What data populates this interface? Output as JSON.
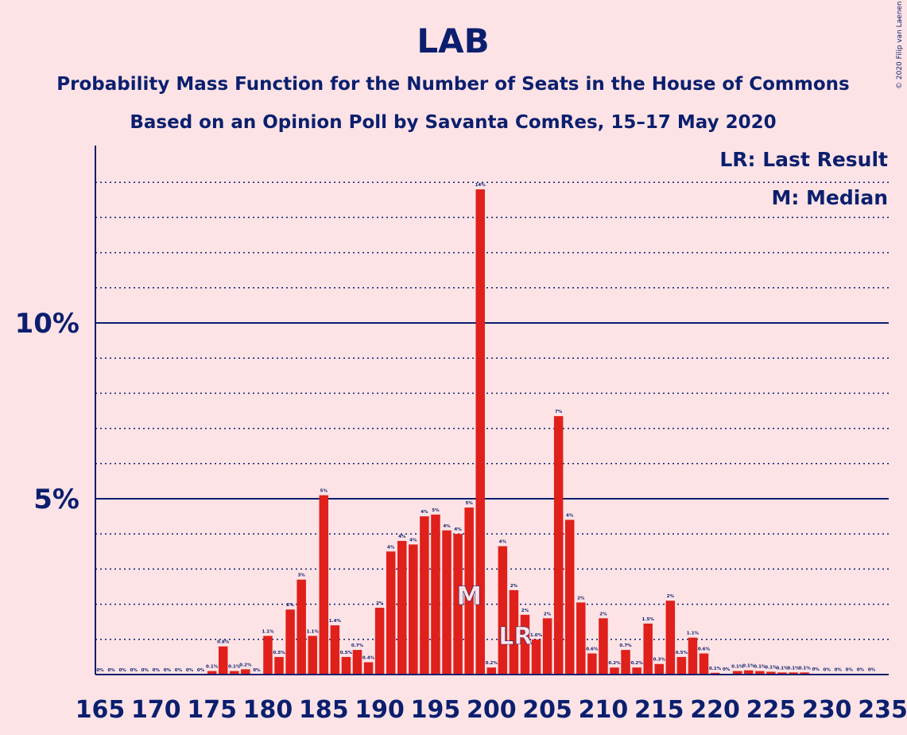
{
  "chart_data": {
    "type": "bar",
    "title": "LAB",
    "subtitle": "Probability Mass Function for the Number of Seats in the House of Commons",
    "subtitle2": "Based on an Opinion Poll by Savanta ComRes, 15–17 May 2020",
    "copyright": "© 2020 Filip van Laenen",
    "legend": [
      "LR: Last Result",
      "M: Median"
    ],
    "legend_position": "top-right",
    "xlim": [
      165,
      235
    ],
    "ylim": [
      0,
      15
    ],
    "y_unit": "%",
    "y_ticks": [
      "5%",
      "10%"
    ],
    "y_tick_values": [
      5,
      10
    ],
    "x_ticks": [
      "165",
      "170",
      "175",
      "180",
      "185",
      "190",
      "195",
      "200",
      "205",
      "210",
      "215",
      "220",
      "225",
      "230",
      "235"
    ],
    "x_tick_values": [
      165,
      170,
      175,
      180,
      185,
      190,
      195,
      200,
      205,
      210,
      215,
      220,
      225,
      230,
      235
    ],
    "grid": "dotted every 1%, solid at 5% and 10%",
    "median_seat": 198,
    "median_marker": "M",
    "last_result_seat": 202,
    "last_result_marker": "LR",
    "bar_color": "#e0201b",
    "axis_color": "#0b1f6e",
    "seats": [
      165,
      166,
      167,
      168,
      169,
      170,
      171,
      172,
      173,
      174,
      175,
      176,
      177,
      178,
      179,
      180,
      181,
      182,
      183,
      184,
      185,
      186,
      187,
      188,
      189,
      190,
      191,
      192,
      193,
      194,
      195,
      196,
      197,
      198,
      199,
      200,
      201,
      202,
      203,
      204,
      205,
      206,
      207,
      208,
      209,
      210,
      211,
      212,
      213,
      214,
      215,
      216,
      217,
      218,
      219,
      220,
      221,
      222,
      223,
      224,
      225,
      226,
      227,
      228,
      229,
      230,
      231,
      232,
      233,
      234
    ],
    "values": [
      0,
      0,
      0,
      0,
      0,
      0,
      0,
      0,
      0,
      0,
      0.1,
      0.8,
      0.1,
      0.15,
      0,
      1.1,
      0.5,
      1.85,
      2.7,
      1.1,
      5.1,
      1.4,
      0.5,
      0.7,
      0.35,
      1.9,
      3.5,
      3.8,
      3.7,
      4.5,
      4.55,
      4.1,
      4.0,
      4.75,
      13.8,
      0.2,
      3.65,
      2.4,
      1.7,
      1.0,
      1.6,
      7.35,
      4.4,
      2.05,
      0.6,
      1.6,
      0.2,
      0.7,
      0.2,
      1.45,
      0.3,
      2.1,
      0.5,
      1.05,
      0.6,
      0.05,
      0.02,
      0.1,
      0.12,
      0.1,
      0.08,
      0.06,
      0.06,
      0.06,
      0.02,
      0.01,
      0.01,
      0.01,
      0.01,
      0.01
    ],
    "labels": [
      "0%",
      "0%",
      "0%",
      "0%",
      "0%",
      "0%",
      "0%",
      "0%",
      "0%",
      "0%",
      "0.1%",
      "0.8%",
      "0.1%",
      "0.2%",
      "0%",
      "1.1%",
      "0.5%",
      "2%",
      "3%",
      "1.1%",
      "5%",
      "1.4%",
      "0.5%",
      "0.7%",
      "0.4%",
      "2%",
      "4%",
      "4%",
      "4%",
      "4%",
      "5%",
      "4%",
      "4%",
      "5%",
      "14%",
      "0.2%",
      "4%",
      "2%",
      "2%",
      "1.0%",
      "2%",
      "7%",
      "4%",
      "2%",
      "0.6%",
      "2%",
      "0.2%",
      "0.7%",
      "0.2%",
      "1.5%",
      "0.3%",
      "2%",
      "0.5%",
      "1.1%",
      "0.6%",
      "0.1%",
      "0%",
      "0.1%",
      "0.1%",
      "0.1%",
      "0.1%",
      "0.1%",
      "0.1%",
      "0.1%",
      "0%",
      "0%",
      "0%",
      "0%",
      "0%",
      "0%"
    ]
  }
}
